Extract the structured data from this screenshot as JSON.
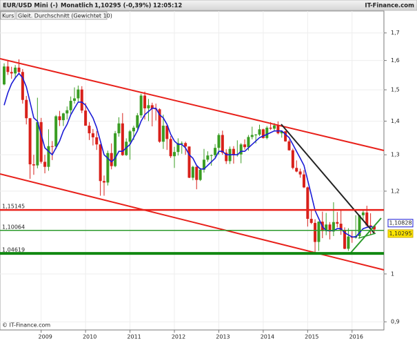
{
  "chart_data": {
    "type": "candlestick",
    "title": "EUR/USD Mini (-)",
    "period": "Monatlich",
    "last": "1,10295 (-0,39%)",
    "time": "12:05:12",
    "source": "IT-Finance.com",
    "copyright": "© IT-Finance.com",
    "log_scale": true,
    "grid": true,
    "categories": [
      null,
      null,
      null,
      null,
      null,
      null,
      null,
      null,
      null,
      null,
      "2009",
      null,
      null,
      null,
      null,
      null,
      null,
      null,
      null,
      null,
      null,
      null,
      "2010",
      null,
      null,
      null,
      null,
      null,
      null,
      null,
      null,
      null,
      null,
      null,
      "2011",
      null,
      null,
      null,
      null,
      null,
      null,
      null,
      null,
      null,
      null,
      null,
      "2012",
      null,
      null,
      null,
      null,
      null,
      null,
      null,
      null,
      null,
      null,
      null,
      "2013",
      null,
      null,
      null,
      null,
      null,
      null,
      null,
      null,
      null,
      null,
      null,
      "2014",
      null,
      null,
      null,
      null,
      null,
      null,
      null,
      null,
      null,
      null,
      null,
      "2015",
      null,
      null,
      null,
      null,
      null,
      null,
      null,
      null,
      null,
      null,
      null,
      "2016",
      null,
      null,
      null,
      null,
      null,
      null
    ],
    "ylim": [
      0.884,
      1.784
    ],
    "yticks": [
      {
        "value": 0.9,
        "label": "0,9"
      },
      1,
      {
        "value": 1.2,
        "label": "1,2"
      },
      {
        "value": 1.3,
        "label": "1,3"
      },
      {
        "value": 1.4,
        "label": "1,4"
      },
      {
        "value": 1.5,
        "label": "1,5"
      },
      {
        "value": 1.6,
        "label": "1,6"
      },
      {
        "value": 1.7,
        "label": "1,7"
      }
    ],
    "series": [
      {
        "name": "Kurs",
        "up_color": "#3a9d23",
        "down_color": "#d8201a",
        "open": [
          1.518,
          1.579,
          1.56,
          1.555,
          1.575,
          1.56,
          1.467,
          1.409,
          1.273,
          1.27,
          1.397,
          1.28,
          1.266,
          1.325,
          1.324,
          1.415,
          1.403,
          1.424,
          1.434,
          1.464,
          1.472,
          1.501,
          1.433,
          1.386,
          1.363,
          1.351,
          1.33,
          1.227,
          1.223,
          1.305,
          1.268,
          1.363,
          1.393,
          1.299,
          1.338,
          1.369,
          1.38,
          1.418,
          1.481,
          1.44,
          1.45,
          1.439,
          1.437,
          1.338,
          1.386,
          1.346,
          1.296,
          1.308,
          1.334,
          1.334,
          1.324,
          1.236,
          1.266,
          1.23,
          1.258,
          1.286,
          1.298,
          1.299,
          1.32,
          1.358,
          1.306,
          1.282,
          1.317,
          1.3,
          1.301,
          1.33,
          1.322,
          1.352,
          1.358,
          1.359,
          1.375,
          1.349,
          1.38,
          1.377,
          1.387,
          1.363,
          1.369,
          1.339,
          1.313,
          1.263,
          1.253,
          1.245,
          1.21,
          1.129,
          1.119,
          1.073,
          1.122,
          1.099,
          1.115,
          1.098,
          1.121,
          1.117,
          1.1,
          1.057,
          1.086,
          1.083,
          1.087,
          1.138,
          1.145,
          1.113,
          1.111
        ],
        "high": [
          1.59,
          1.602,
          1.578,
          1.584,
          1.604,
          1.57,
          1.48,
          1.41,
          1.3,
          1.474,
          1.41,
          1.3,
          1.375,
          1.34,
          1.419,
          1.432,
          1.426,
          1.446,
          1.478,
          1.508,
          1.514,
          1.512,
          1.457,
          1.397,
          1.376,
          1.37,
          1.331,
          1.242,
          1.312,
          1.333,
          1.37,
          1.412,
          1.425,
          1.348,
          1.373,
          1.386,
          1.425,
          1.487,
          1.494,
          1.47,
          1.458,
          1.455,
          1.44,
          1.42,
          1.387,
          1.355,
          1.323,
          1.348,
          1.339,
          1.338,
          1.324,
          1.269,
          1.268,
          1.263,
          1.317,
          1.31,
          1.301,
          1.331,
          1.363,
          1.371,
          1.316,
          1.324,
          1.325,
          1.342,
          1.334,
          1.345,
          1.358,
          1.383,
          1.361,
          1.389,
          1.377,
          1.385,
          1.397,
          1.394,
          1.399,
          1.37,
          1.37,
          1.344,
          1.318,
          1.284,
          1.261,
          1.257,
          1.212,
          1.153,
          1.128,
          1.123,
          1.147,
          1.144,
          1.121,
          1.171,
          1.146,
          1.15,
          1.108,
          1.106,
          1.099,
          1.138,
          1.139,
          1.15,
          1.162,
          1.143,
          1.112
        ],
        "low": [
          1.515,
          1.55,
          1.537,
          1.536,
          1.556,
          1.455,
          1.39,
          1.233,
          1.244,
          1.262,
          1.275,
          1.248,
          1.255,
          1.285,
          1.316,
          1.385,
          1.385,
          1.405,
          1.421,
          1.455,
          1.462,
          1.425,
          1.386,
          1.343,
          1.327,
          1.314,
          1.188,
          1.188,
          1.215,
          1.259,
          1.265,
          1.353,
          1.297,
          1.297,
          1.286,
          1.343,
          1.375,
          1.41,
          1.405,
          1.4,
          1.384,
          1.402,
          1.335,
          1.317,
          1.314,
          1.291,
          1.263,
          1.298,
          1.303,
          1.3,
          1.235,
          1.229,
          1.205,
          1.227,
          1.25,
          1.28,
          1.269,
          1.288,
          1.3,
          1.3,
          1.274,
          1.274,
          1.275,
          1.295,
          1.276,
          1.315,
          1.312,
          1.345,
          1.333,
          1.355,
          1.347,
          1.345,
          1.373,
          1.371,
          1.36,
          1.35,
          1.338,
          1.312,
          1.259,
          1.251,
          1.236,
          1.208,
          1.11,
          1.116,
          1.046,
          1.052,
          1.082,
          1.089,
          1.079,
          1.087,
          1.108,
          1.09,
          1.056,
          1.052,
          1.071,
          1.081,
          1.081,
          1.123,
          1.11,
          1.091,
          1.094
        ],
        "close": [
          1.579,
          1.56,
          1.555,
          1.575,
          1.56,
          1.467,
          1.409,
          1.273,
          1.27,
          1.397,
          1.28,
          1.266,
          1.325,
          1.324,
          1.415,
          1.403,
          1.424,
          1.434,
          1.464,
          1.472,
          1.501,
          1.433,
          1.386,
          1.363,
          1.351,
          1.33,
          1.227,
          1.223,
          1.305,
          1.268,
          1.363,
          1.393,
          1.299,
          1.338,
          1.369,
          1.38,
          1.418,
          1.481,
          1.44,
          1.45,
          1.439,
          1.437,
          1.338,
          1.386,
          1.346,
          1.296,
          1.308,
          1.334,
          1.334,
          1.324,
          1.236,
          1.266,
          1.23,
          1.258,
          1.286,
          1.298,
          1.299,
          1.32,
          1.358,
          1.306,
          1.282,
          1.317,
          1.3,
          1.301,
          1.33,
          1.322,
          1.352,
          1.358,
          1.359,
          1.375,
          1.349,
          1.38,
          1.377,
          1.387,
          1.363,
          1.369,
          1.339,
          1.313,
          1.263,
          1.253,
          1.245,
          1.21,
          1.129,
          1.119,
          1.073,
          1.122,
          1.099,
          1.115,
          1.098,
          1.121,
          1.117,
          1.1,
          1.057,
          1.086,
          1.083,
          1.087,
          1.138,
          1.145,
          1.113,
          1.111,
          1.10295
        ]
      },
      {
        "name": "Gleit. Durchschnitt (Gewichtet 10)",
        "type": "line",
        "color": "#1a1ad6",
        "values": [
          1.45,
          1.49,
          1.52,
          1.54,
          1.555,
          1.54,
          1.51,
          1.46,
          1.41,
          1.4,
          1.36,
          1.32,
          1.31,
          1.3,
          1.32,
          1.34,
          1.37,
          1.39,
          1.42,
          1.44,
          1.46,
          1.46,
          1.45,
          1.43,
          1.41,
          1.38,
          1.34,
          1.3,
          1.29,
          1.28,
          1.29,
          1.31,
          1.31,
          1.32,
          1.33,
          1.35,
          1.37,
          1.4,
          1.42,
          1.43,
          1.44,
          1.44,
          1.42,
          1.41,
          1.39,
          1.36,
          1.34,
          1.33,
          1.33,
          1.32,
          1.3,
          1.29,
          1.27,
          1.26,
          1.26,
          1.27,
          1.28,
          1.29,
          1.31,
          1.31,
          1.3,
          1.3,
          1.3,
          1.3,
          1.31,
          1.31,
          1.32,
          1.33,
          1.34,
          1.35,
          1.355,
          1.36,
          1.365,
          1.37,
          1.37,
          1.37,
          1.36,
          1.35,
          1.33,
          1.31,
          1.29,
          1.27,
          1.23,
          1.19,
          1.15,
          1.13,
          1.11,
          1.1,
          1.1,
          1.1,
          1.105,
          1.105,
          1.095,
          1.09,
          1.085,
          1.085,
          1.095,
          1.105,
          1.108,
          1.11,
          1.10828
        ]
      }
    ],
    "levels": [
      {
        "value": 1.15145,
        "label": "1,15145",
        "color": "#e8201a"
      },
      {
        "value": 1.10064,
        "label": "1,10064",
        "color": "#2a9a2a"
      },
      {
        "value": 1.04619,
        "label": "1,04619",
        "color": "#118811"
      }
    ],
    "price_boxes": [
      {
        "value": 1.10828,
        "label": "1,10828",
        "color": "#1a1ad6",
        "fill": "#ffffff"
      },
      {
        "value": 1.10295,
        "label": "1,10295",
        "color": "#c8a800",
        "fill": "#ffe600"
      }
    ]
  }
}
